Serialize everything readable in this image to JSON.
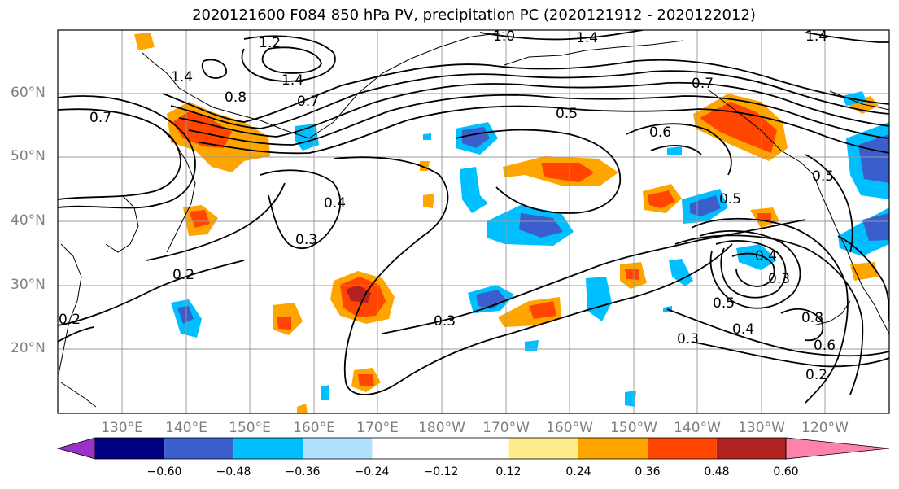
{
  "title": "2020121600 F084 850 hPa PV, precipitation PC (2020121912 - 2020122012)",
  "lat_labels": [
    "60°N",
    "50°N",
    "40°N",
    "30°N",
    "20°N"
  ],
  "lon_labels": [
    "130°E",
    "140°E",
    "150°E",
    "160°E",
    "170°E",
    "180°W",
    "170°W",
    "160°W",
    "150°W",
    "140°W",
    "130°W",
    "120°W"
  ],
  "contour_labels": [
    "1.2",
    "1.4",
    "1.0",
    "1.4",
    "1.4",
    "0.8",
    "0.7",
    "0.7",
    "0.6",
    "0.5",
    "0.5",
    "0.4",
    "0.3",
    "0.2",
    "0.3",
    "0.4",
    "0.3",
    "0.2",
    "0.3",
    "0.5",
    "0.4",
    "0.8",
    "0.6",
    "0.2",
    "0.7",
    "0.5",
    "1.4"
  ],
  "colorbar": {
    "ticks": [
      "−0.60",
      "−0.48",
      "−0.36",
      "−0.24",
      "−0.12",
      "0.12",
      "0.24",
      "0.36",
      "0.48",
      "0.60"
    ],
    "colors": [
      "#000080",
      "#3a5fcd",
      "#00bfff",
      "#b0e2ff",
      "#ffffff",
      "#ffec8b",
      "#ffa500",
      "#ff4500",
      "#b22222"
    ],
    "under_color": "#9932cc",
    "over_color": "#ff82ab"
  }
}
